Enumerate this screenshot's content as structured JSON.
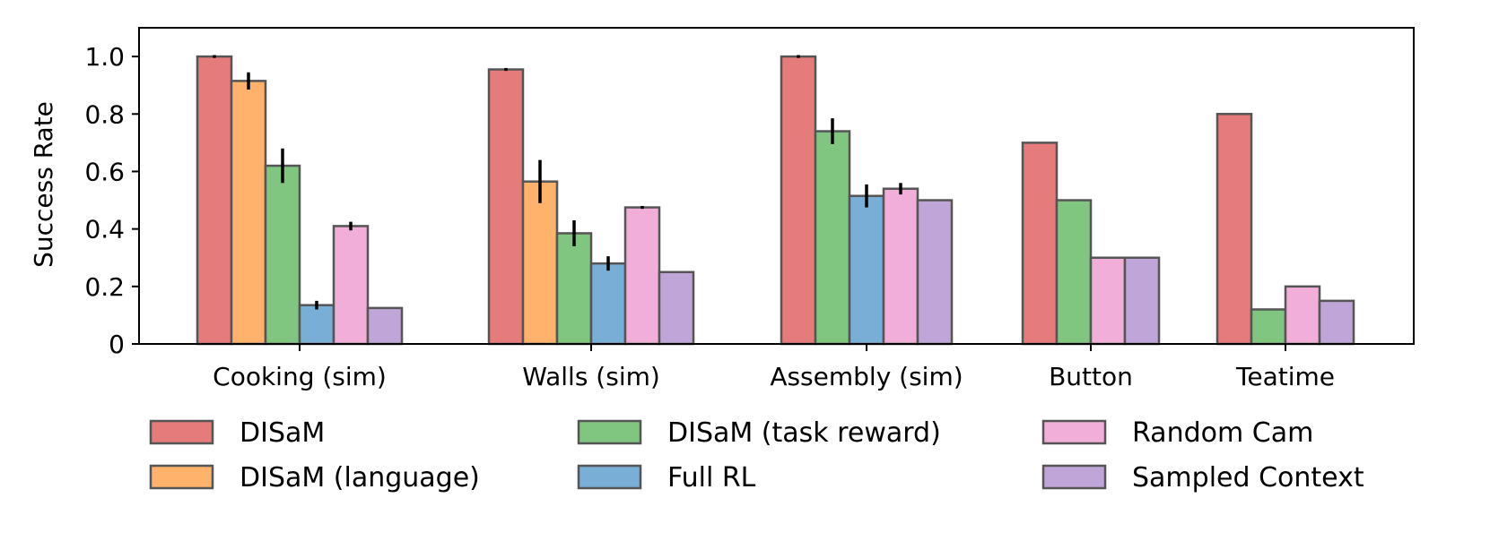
{
  "chart_data": {
    "type": "bar",
    "title": "",
    "xlabel": "",
    "ylabel": "Success Rate",
    "ylim": [
      0,
      1.1
    ],
    "yticks": [
      0,
      0.2,
      0.4,
      0.6,
      0.8,
      1.0
    ],
    "ytick_labels": [
      "0",
      "0.2",
      "0.4",
      "0.6",
      "0.8",
      "1.0"
    ],
    "grid": false,
    "legend_position": "bottom",
    "groups": [
      {
        "label": "Cooking (sim)",
        "bars": [
          {
            "series": "DISaM",
            "value": 1.0,
            "err": 0.005
          },
          {
            "series": "DISaM (language)",
            "value": 0.915,
            "err": 0.03
          },
          {
            "series": "DISaM (task reward)",
            "value": 0.62,
            "err": 0.06
          },
          {
            "series": "Full RL",
            "value": 0.135,
            "err": 0.015
          },
          {
            "series": "Random Cam",
            "value": 0.41,
            "err": 0.015
          },
          {
            "series": "Sampled Context",
            "value": 0.125,
            "err": 0
          }
        ]
      },
      {
        "label": "Walls (sim)",
        "bars": [
          {
            "series": "DISaM",
            "value": 0.955,
            "err": 0.005
          },
          {
            "series": "DISaM (language)",
            "value": 0.565,
            "err": 0.075
          },
          {
            "series": "DISaM (task reward)",
            "value": 0.385,
            "err": 0.045
          },
          {
            "series": "Full RL",
            "value": 0.28,
            "err": 0.025
          },
          {
            "series": "Random Cam",
            "value": 0.475,
            "err": 0.005
          },
          {
            "series": "Sampled Context",
            "value": 0.25,
            "err": 0
          }
        ]
      },
      {
        "label": "Assembly (sim)",
        "bars": [
          {
            "series": "DISaM",
            "value": 1.0,
            "err": 0.005
          },
          {
            "series": "DISaM (task reward)",
            "value": 0.74,
            "err": 0.045
          },
          {
            "series": "Full RL",
            "value": 0.515,
            "err": 0.04
          },
          {
            "series": "Random Cam",
            "value": 0.54,
            "err": 0.02
          },
          {
            "series": "Sampled Context",
            "value": 0.5,
            "err": 0
          }
        ]
      },
      {
        "label": "Button",
        "bars": [
          {
            "series": "DISaM",
            "value": 0.7,
            "err": 0
          },
          {
            "series": "DISaM (task reward)",
            "value": 0.5,
            "err": 0
          },
          {
            "series": "Random Cam",
            "value": 0.3,
            "err": 0
          },
          {
            "series": "Sampled Context",
            "value": 0.3,
            "err": 0
          }
        ]
      },
      {
        "label": "Teatime",
        "bars": [
          {
            "series": "DISaM",
            "value": 0.8,
            "err": 0
          },
          {
            "series": "DISaM (task reward)",
            "value": 0.12,
            "err": 0
          },
          {
            "series": "Random Cam",
            "value": 0.2,
            "err": 0
          },
          {
            "series": "Sampled Context",
            "value": 0.15,
            "err": 0
          }
        ]
      }
    ],
    "series": [
      {
        "name": "DISaM",
        "color": "#e67b7b"
      },
      {
        "name": "DISaM (language)",
        "color": "#ffb26b"
      },
      {
        "name": "DISaM (task reward)",
        "color": "#80c680"
      },
      {
        "name": "Full RL",
        "color": "#79aed6"
      },
      {
        "name": "Random Cam",
        "color": "#f0aed8"
      },
      {
        "name": "Sampled Context",
        "color": "#c0a6d8"
      }
    ]
  }
}
